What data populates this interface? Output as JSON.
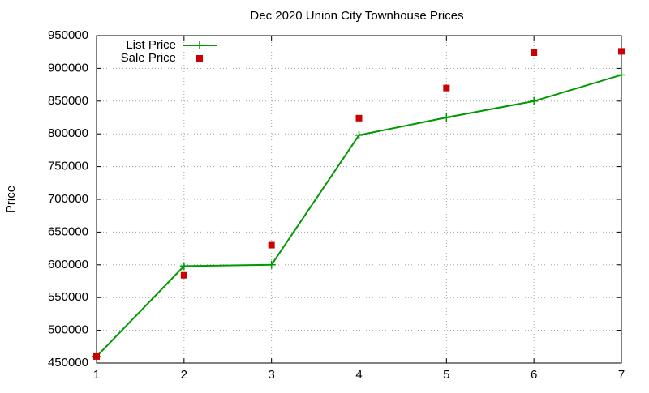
{
  "chart_data": {
    "type": "line",
    "title": "Dec 2020 Union City Townhouse Prices",
    "y_label": "Price",
    "x": [
      1,
      2,
      3,
      4,
      5,
      6,
      7
    ],
    "series": [
      {
        "name": "List Price",
        "color": "#009900",
        "style": "linespoints",
        "values": [
          460000,
          598000,
          600000,
          798000,
          825000,
          850000,
          890000
        ]
      },
      {
        "name": "Sale Price",
        "color": "#cc0000",
        "style": "points",
        "values": [
          460000,
          584000,
          630000,
          824000,
          870000,
          924000,
          926000
        ]
      }
    ],
    "xlim": [
      1,
      7
    ],
    "xticks": [
      1,
      2,
      3,
      4,
      5,
      6,
      7
    ],
    "ylim": [
      450000,
      950000
    ],
    "yticks": [
      450000,
      500000,
      550000,
      600000,
      650000,
      700000,
      750000,
      800000,
      850000,
      900000,
      950000
    ],
    "grid": true,
    "legend": "top-left"
  }
}
